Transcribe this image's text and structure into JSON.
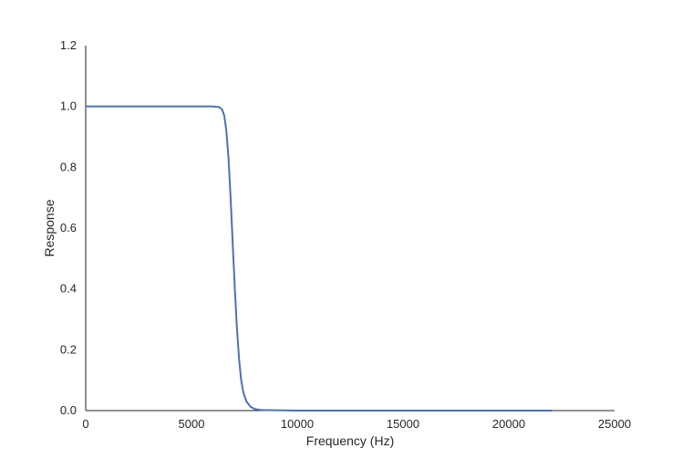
{
  "chart_data": {
    "type": "line",
    "title": "",
    "xlabel": "Frequency (Hz)",
    "ylabel": "Response",
    "xlim": [
      0,
      25000
    ],
    "ylim": [
      0.0,
      1.2
    ],
    "xticks": [
      0,
      5000,
      10000,
      15000,
      20000,
      25000
    ],
    "xtick_labels": [
      "0",
      "5000",
      "10000",
      "15000",
      "20000",
      "25000"
    ],
    "yticks": [
      0.0,
      0.2,
      0.4,
      0.6,
      0.8,
      1.0,
      1.2
    ],
    "ytick_labels": [
      "0.0",
      "0.2",
      "0.4",
      "0.6",
      "0.8",
      "1.0",
      "1.2"
    ],
    "grid": false,
    "series": [
      {
        "color": "#4c72b0",
        "x": [
          0,
          1000,
          2000,
          3000,
          4000,
          5000,
          6000,
          6300,
          6450,
          6550,
          6650,
          6750,
          6850,
          6950,
          7050,
          7150,
          7250,
          7350,
          7450,
          7600,
          7800,
          8000,
          8300,
          9000,
          10000,
          12000,
          15000,
          18000,
          20000,
          22050
        ],
        "y": [
          1.0,
          1.0,
          1.0,
          1.0,
          1.0,
          1.0,
          1.0,
          0.998,
          0.99,
          0.97,
          0.92,
          0.83,
          0.7,
          0.55,
          0.4,
          0.27,
          0.17,
          0.1,
          0.06,
          0.03,
          0.012,
          0.005,
          0.002,
          0.001,
          0.0,
          0.0,
          0.0,
          0.0,
          0.0,
          0.0
        ]
      }
    ]
  }
}
